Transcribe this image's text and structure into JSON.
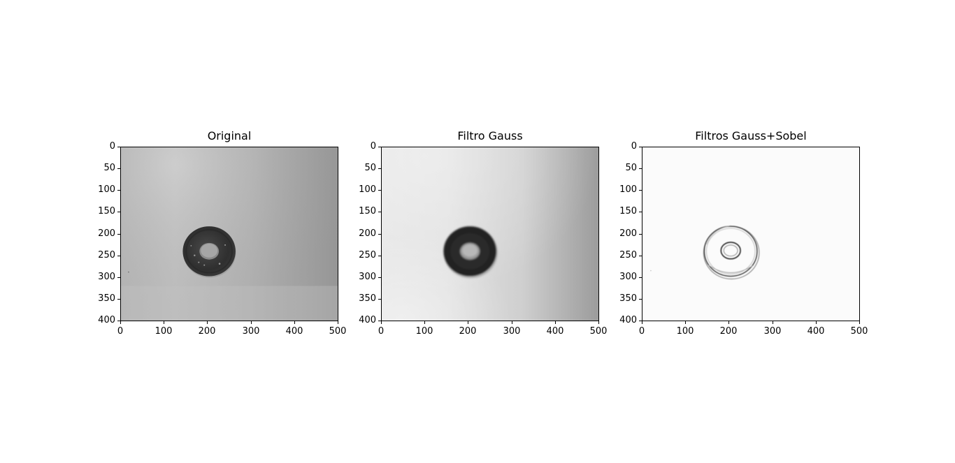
{
  "figure": {
    "panels": [
      {
        "key": "original",
        "title": "Original",
        "image": "grayscale photo of a dark washer (ring) on a light gray background"
      },
      {
        "key": "gauss",
        "title": "Filtro Gauss",
        "image": "gaussian-blurred grayscale photo of the washer"
      },
      {
        "key": "sobel",
        "title": "Filtros Gauss+Sobel",
        "image": "edge map (inverted) showing ring outlines on white"
      }
    ],
    "x_ticks": [
      "0",
      "100",
      "200",
      "300",
      "400",
      "500"
    ],
    "y_ticks": [
      "0",
      "50",
      "100",
      "150",
      "200",
      "250",
      "300",
      "350",
      "400"
    ],
    "x_range": [
      0,
      500
    ],
    "y_range": [
      0,
      400
    ],
    "colors": {
      "background": "#ffffff",
      "axes": "#000000"
    }
  }
}
